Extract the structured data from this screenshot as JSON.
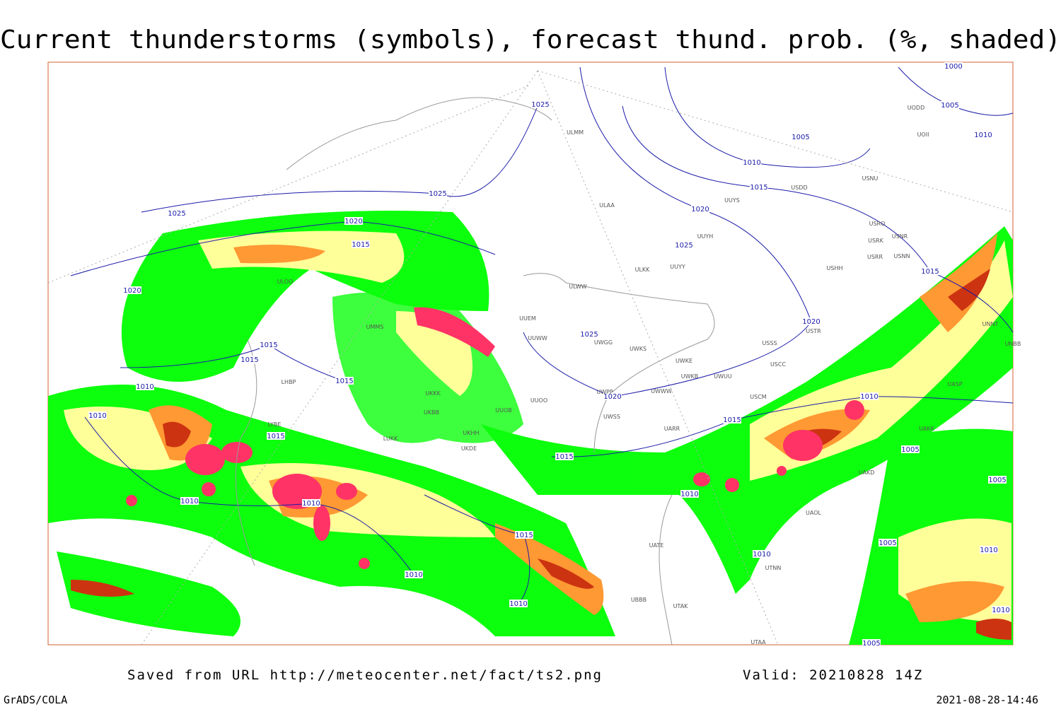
{
  "header": {
    "title": "Current thunderstorms (symbols), forecast thund. prob. (%, shaded)"
  },
  "footer": {
    "source": "Saved from URL http://meteocenter.net/fact/ts2.png",
    "valid": "Valid: 20210828 14Z",
    "software": "GrADS/COLA",
    "timestamp": "2021-08-28-14:46"
  },
  "isobar_labels": [
    "1025",
    "1025",
    "1025",
    "1020",
    "1015",
    "1020",
    "1015",
    "1015",
    "1010",
    "1010",
    "1015",
    "1015",
    "1010",
    "1010",
    "1010",
    "1010",
    "1015",
    "1015",
    "1020",
    "1025",
    "1025",
    "1020",
    "1015",
    "1010",
    "1005",
    "1005",
    "1000",
    "1010",
    "1020",
    "1015",
    "1010",
    "1005",
    "1005",
    "1010",
    "1015",
    "1010",
    "1005",
    "1010",
    "1010",
    "1005"
  ],
  "stations": [
    "ULMM",
    "ULAA",
    "UUYS",
    "USDD",
    "USNU",
    "UUYH",
    "ULKK",
    "UUYY",
    "ULWW",
    "UUEM",
    "UUWW",
    "UWGG",
    "UWKS",
    "UWKE",
    "UWKB",
    "UWUU",
    "USSS",
    "USTR",
    "USCC",
    "UWPP",
    "UWWW",
    "USCM",
    "UWSS",
    "UARR",
    "USHH",
    "USRR",
    "USNN",
    "USRK",
    "USNR",
    "USRO",
    "UODD",
    "UOII",
    "ULOO",
    "UMMS",
    "UKBB",
    "UKKK",
    "UKDE",
    "UKHH",
    "LUKK",
    "LYBE",
    "LHBP",
    "UUOO",
    "UUOB",
    "UATE",
    "UTAK",
    "UBBB",
    "UTNN",
    "UAOL",
    "UAKD",
    "UAKK",
    "UASP",
    "UNNT",
    "UNBB",
    "UTAA"
  ]
}
